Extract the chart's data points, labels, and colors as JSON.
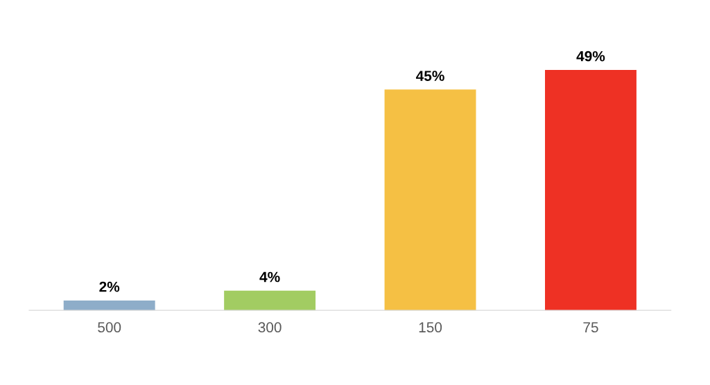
{
  "chart_data": {
    "type": "bar",
    "categories": [
      "500",
      "300",
      "150",
      "75"
    ],
    "values": [
      2,
      4,
      45,
      49
    ],
    "value_labels": [
      "2%",
      "4%",
      "45%",
      "49%"
    ],
    "colors": [
      "#8eadc9",
      "#a2cc62",
      "#f5c044",
      "#ee3124"
    ],
    "grid": false,
    "legend": false
  }
}
